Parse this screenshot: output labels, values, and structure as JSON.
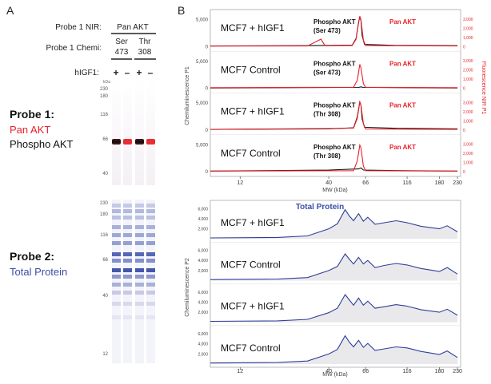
{
  "panel_a": {
    "letter": "A",
    "probe1_nir_label": "Probe 1 NIR:",
    "probe1_nir_value": "Pan AKT",
    "probe1_chemi_label": "Probe 1 Chemi:",
    "chemi_groups": [
      {
        "line1": "Ser",
        "line2": "473"
      },
      {
        "line1": "Thr",
        "line2": "308"
      }
    ],
    "higf1_label": "hIGF1:",
    "lane_signs": [
      "+",
      "–",
      "+",
      "–"
    ],
    "kda_unit": "kDa",
    "top_ladder": [
      "230",
      "180",
      "116",
      "66",
      "40"
    ],
    "bottom_ladder": [
      "230",
      "180",
      "116",
      "66",
      "40",
      "12"
    ],
    "probe1_title": "Probe 1:",
    "probe1_line2": "Pan AKT",
    "probe1_line3": "Phospho AKT",
    "probe2_title": "Probe 2:",
    "probe2_line2": "Total Protein",
    "colors": {
      "red": "#e8222a",
      "blue": "#3a4ea8",
      "black": "#111111"
    }
  },
  "panel_b": {
    "letter": "B",
    "ylabel_left_top": "Chemiluminescence P1",
    "ylabel_right_top": "Fluorescence NIR P1",
    "ylabel_left_bottom": "Chemiluminescence P2",
    "xlabel": "MW (kDa)",
    "x_ticks": [
      "12",
      "40",
      "66",
      "116",
      "180",
      "230"
    ],
    "total_protein_title": "Total Protein"
  },
  "chart_data": [
    {
      "type": "line",
      "title": "",
      "xlabel": "MW (kDa)",
      "ylabel": "Chemiluminescence P1",
      "y2label": "Fluorescence NIR P1",
      "x_ticks": [
        12,
        40,
        66,
        116,
        180,
        230
      ],
      "ylim": [
        0,
        6000
      ],
      "y2lim": [
        0,
        3500
      ],
      "y_ticks": [
        "0",
        "5,000"
      ],
      "y2_ticks": [
        "0",
        "1,000",
        "2,000",
        "3,000"
      ],
      "panels": [
        {
          "sample": "MCF7 + hIGF1",
          "probe_line1": "Phospho AKT",
          "probe_line2": "(Ser 473)",
          "legend": "Pan AKT",
          "series": [
            {
              "color": "#111111",
              "points": [
                [
                  8,
                  100
                ],
                [
                  30,
                  150
                ],
                [
                  55,
                  250
                ],
                [
                  58,
                  1500
                ],
                [
                  60,
                  4500
                ],
                [
                  61,
                  5600
                ],
                [
                  62,
                  4800
                ],
                [
                  63,
                  2000
                ],
                [
                  65,
                  400
                ],
                [
                  100,
                  200
                ],
                [
                  230,
                  150
                ]
              ]
            },
            {
              "color": "#e8222a",
              "points": [
                [
                  8,
                  50
                ],
                [
                  30,
                  60
                ],
                [
                  36,
                  800
                ],
                [
                  38,
                  80
                ],
                [
                  55,
                  100
                ],
                [
                  58,
                  800
                ],
                [
                  60,
                  2600
                ],
                [
                  61,
                  3300
                ],
                [
                  62,
                  2900
                ],
                [
                  64,
                  700
                ],
                [
                  66,
                  100
                ],
                [
                  230,
                  60
                ]
              ]
            }
          ]
        },
        {
          "sample": "MCF7 Control",
          "probe_line1": "Phospho AKT",
          "probe_line2": "(Ser 473)",
          "legend": "Pan AKT",
          "series": [
            {
              "color": "#111111",
              "points": [
                [
                  8,
                  50
                ],
                [
                  60,
                  150
                ],
                [
                  62,
                  250
                ],
                [
                  64,
                  150
                ],
                [
                  230,
                  50
                ]
              ]
            },
            {
              "color": "#e8222a",
              "points": [
                [
                  8,
                  60
                ],
                [
                  56,
                  100
                ],
                [
                  59,
                  900
                ],
                [
                  61,
                  2600
                ],
                [
                  62,
                  2200
                ],
                [
                  64,
                  500
                ],
                [
                  66,
                  100
                ],
                [
                  230,
                  60
                ]
              ]
            }
          ]
        },
        {
          "sample": "MCF7 + hIGF1",
          "probe_line1": "Phospho AKT",
          "probe_line2": "(Thr 308)",
          "legend": "Pan AKT",
          "series": [
            {
              "color": "#111111",
              "points": [
                [
                  8,
                  100
                ],
                [
                  40,
                  200
                ],
                [
                  56,
                  400
                ],
                [
                  59,
                  2500
                ],
                [
                  61,
                  5200
                ],
                [
                  62,
                  4600
                ],
                [
                  63,
                  2000
                ],
                [
                  65,
                  500
                ],
                [
                  100,
                  300
                ],
                [
                  230,
                  200
                ]
              ]
            },
            {
              "color": "#e8222a",
              "points": [
                [
                  8,
                  60
                ],
                [
                  40,
                  150
                ],
                [
                  56,
                  200
                ],
                [
                  59,
                  1300
                ],
                [
                  61,
                  3100
                ],
                [
                  62,
                  2700
                ],
                [
                  64,
                  700
                ],
                [
                  66,
                  100
                ],
                [
                  230,
                  60
                ]
              ]
            }
          ]
        },
        {
          "sample": "MCF7 Control",
          "probe_line1": "Phospho AKT",
          "probe_line2": "(Thr 308)",
          "legend": "Pan AKT",
          "series": [
            {
              "color": "#111111",
              "points": [
                [
                  8,
                  100
                ],
                [
                  40,
                  300
                ],
                [
                  60,
                  500
                ],
                [
                  62,
                  700
                ],
                [
                  64,
                  300
                ],
                [
                  100,
                  200
                ],
                [
                  230,
                  100
                ]
              ]
            },
            {
              "color": "#e8222a",
              "points": [
                [
                  8,
                  60
                ],
                [
                  56,
                  100
                ],
                [
                  59,
                  1200
                ],
                [
                  61,
                  2900
                ],
                [
                  62,
                  2600
                ],
                [
                  64,
                  600
                ],
                [
                  66,
                  100
                ],
                [
                  230,
                  60
                ]
              ]
            }
          ]
        }
      ]
    },
    {
      "type": "area",
      "title": "Total Protein",
      "xlabel": "MW (kDa)",
      "ylabel": "Chemiluminescence P2",
      "x_ticks": [
        12,
        40,
        66,
        116,
        180,
        230
      ],
      "ylim": [
        0,
        7000
      ],
      "y_ticks": [
        "2,000",
        "4,000",
        "6,000"
      ],
      "panels": [
        {
          "sample": "MCF7 + hIGF1",
          "values": [
            [
              8,
              200
            ],
            [
              20,
              300
            ],
            [
              30,
              600
            ],
            [
              40,
              2000
            ],
            [
              45,
              3000
            ],
            [
              50,
              5800
            ],
            [
              53,
              4500
            ],
            [
              56,
              3600
            ],
            [
              60,
              5000
            ],
            [
              64,
              3500
            ],
            [
              68,
              4300
            ],
            [
              75,
              2900
            ],
            [
              85,
              3200
            ],
            [
              100,
              3600
            ],
            [
              116,
              3200
            ],
            [
              140,
              2500
            ],
            [
              180,
              2000
            ],
            [
              200,
              2600
            ],
            [
              230,
              1400
            ]
          ]
        },
        {
          "sample": "MCF7 Control",
          "values": [
            [
              8,
              200
            ],
            [
              20,
              300
            ],
            [
              30,
              600
            ],
            [
              40,
              2000
            ],
            [
              45,
              2800
            ],
            [
              50,
              5300
            ],
            [
              53,
              4200
            ],
            [
              56,
              3300
            ],
            [
              60,
              4600
            ],
            [
              64,
              3300
            ],
            [
              68,
              4000
            ],
            [
              75,
              2600
            ],
            [
              85,
              3000
            ],
            [
              100,
              3400
            ],
            [
              116,
              3100
            ],
            [
              140,
              2400
            ],
            [
              180,
              1800
            ],
            [
              200,
              2600
            ],
            [
              230,
              1300
            ]
          ]
        },
        {
          "sample": "MCF7 + hIGF1",
          "values": [
            [
              8,
              200
            ],
            [
              20,
              300
            ],
            [
              30,
              600
            ],
            [
              40,
              1900
            ],
            [
              45,
              2800
            ],
            [
              50,
              5500
            ],
            [
              53,
              4400
            ],
            [
              56,
              3400
            ],
            [
              60,
              4800
            ],
            [
              64,
              3400
            ],
            [
              68,
              4200
            ],
            [
              75,
              2800
            ],
            [
              85,
              3100
            ],
            [
              100,
              3500
            ],
            [
              116,
              3200
            ],
            [
              140,
              2500
            ],
            [
              180,
              2000
            ],
            [
              200,
              2600
            ],
            [
              230,
              1400
            ]
          ]
        },
        {
          "sample": "MCF7 Control",
          "values": [
            [
              8,
              200
            ],
            [
              20,
              300
            ],
            [
              30,
              600
            ],
            [
              40,
              2000
            ],
            [
              45,
              2900
            ],
            [
              50,
              5600
            ],
            [
              53,
              4300
            ],
            [
              56,
              3400
            ],
            [
              60,
              4700
            ],
            [
              64,
              3300
            ],
            [
              68,
              4100
            ],
            [
              75,
              2700
            ],
            [
              85,
              3000
            ],
            [
              100,
              3400
            ],
            [
              116,
              3200
            ],
            [
              140,
              2500
            ],
            [
              180,
              1900
            ],
            [
              200,
              2600
            ],
            [
              230,
              1300
            ]
          ]
        }
      ]
    }
  ]
}
